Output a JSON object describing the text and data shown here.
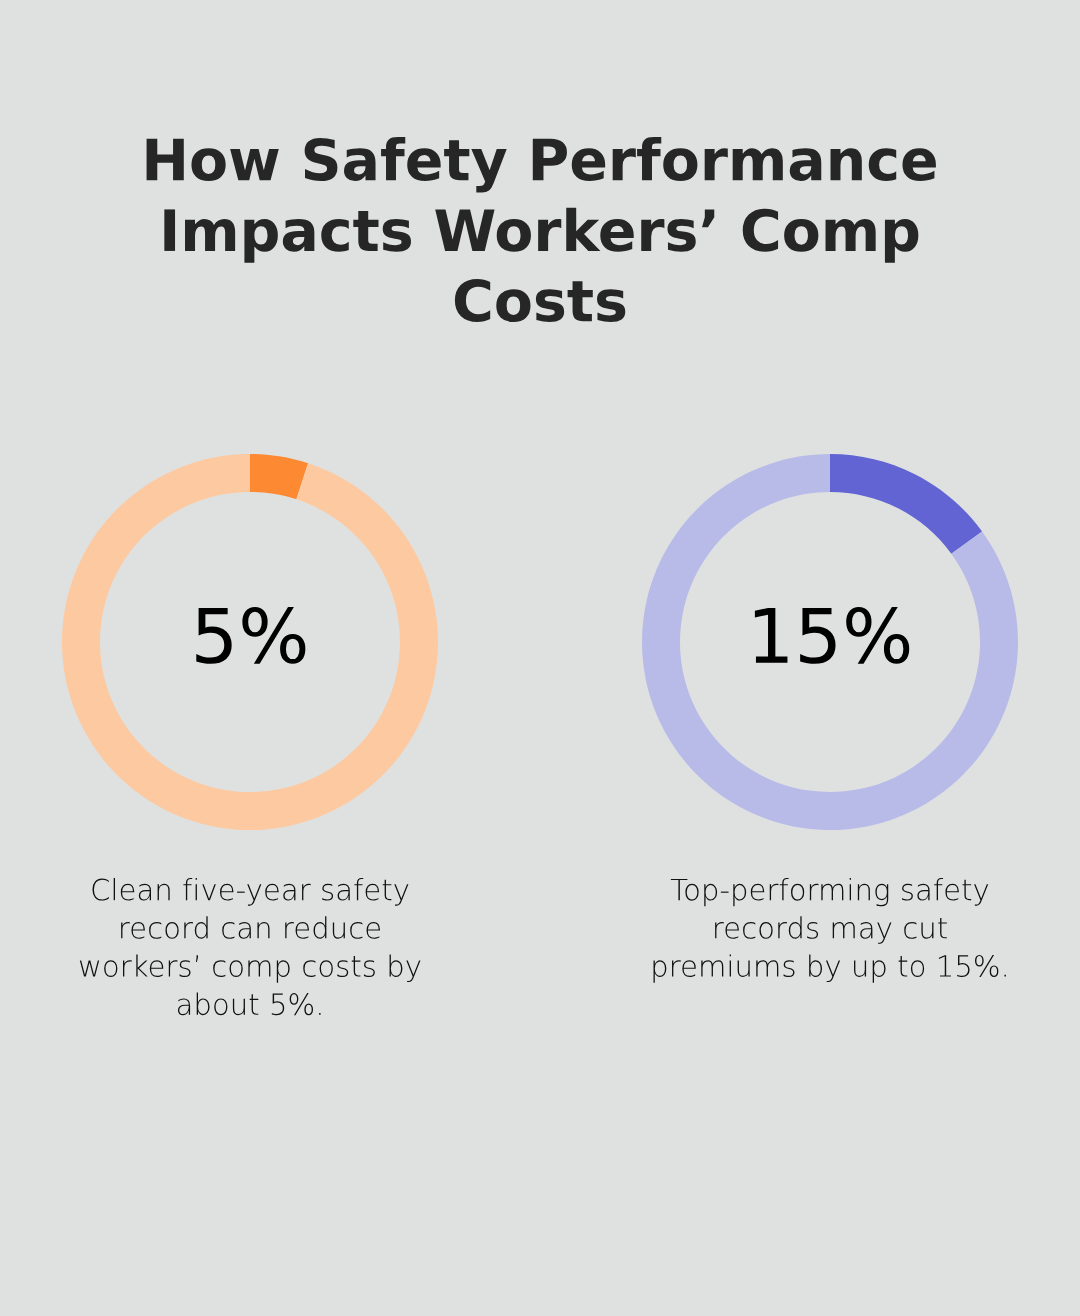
{
  "chart_data": [
    {
      "type": "donut",
      "title": "How Safety Performance\nImpacts Workers’ Comp\nCosts",
      "categories": [
        null,
        null
      ],
      "values": [
        5,
        95
      ],
      "colors": [
        "#fd8a33",
        "#fdc9a0"
      ],
      "value_labels": [
        "5%",
        null
      ],
      "annotations": [
        "Clean five-year safety\nrecord can reduce\nworkers’ comp costs by\nabout 5%."
      ]
    },
    {
      "type": "donut",
      "categories": [
        null,
        null
      ],
      "values": [
        15,
        85
      ],
      "colors": [
        "#6164d2",
        "#b8bbe8"
      ],
      "value_labels": [
        "15%",
        null
      ],
      "annotations": [
        "Top-performing safety\nrecords may cut\npremiums by up to 15%."
      ]
    }
  ]
}
